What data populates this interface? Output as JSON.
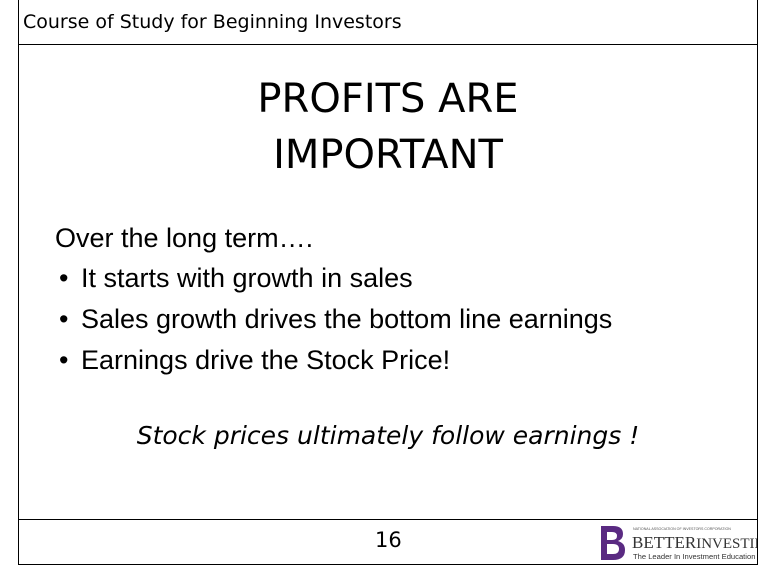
{
  "header": {
    "course": "Course of Study for Beginning Investors"
  },
  "slide": {
    "title_lines": [
      "PROFITS ARE",
      "IMPORTANT"
    ],
    "intro": "Over the long term….",
    "bullets": [
      "It starts with growth in sales",
      "Sales growth drives the bottom line earnings",
      "Earnings drive the Stock Price!"
    ],
    "closing": "Stock prices ultimately follow earnings !"
  },
  "footer": {
    "page_number": "16",
    "logo": {
      "tagline_top": "NATIONAL ASSOCIATION OF INVESTORS CORPORATION",
      "name_better": "BETTER",
      "name_investing": "INVESTING",
      "trademark": "™",
      "tagline": "The Leader In Investment Education"
    }
  }
}
